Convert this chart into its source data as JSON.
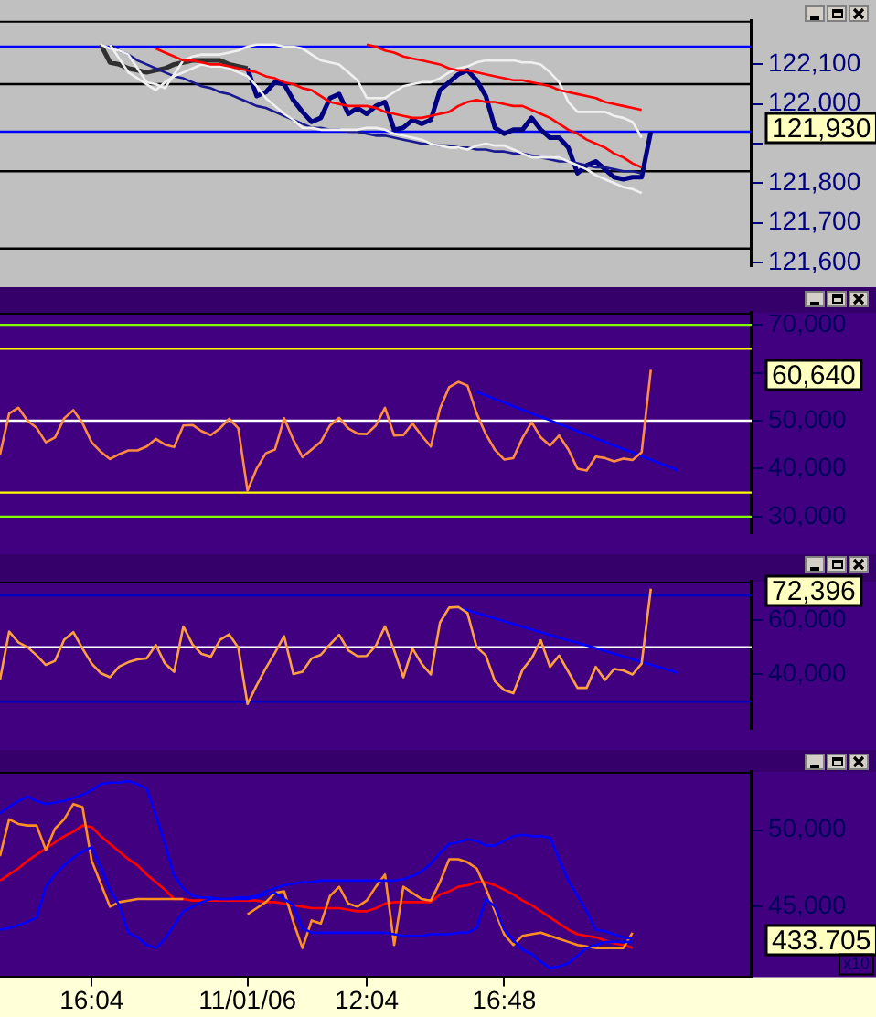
{
  "chart_data": [
    {
      "type": "line",
      "ylim": [
        121590,
        122210
      ],
      "yticks": [
        {
          "value": 121600,
          "label": "121,600"
        },
        {
          "value": 121700,
          "label": "121,700"
        },
        {
          "value": 121800,
          "label": "121,800"
        },
        {
          "value": 121900,
          "label": null
        },
        {
          "value": 122000,
          "label": "122,000"
        },
        {
          "value": 122100,
          "label": "122,100"
        }
      ],
      "tick_labels": "y",
      "marker": "none",
      "series": [
        {
          "color": "#303030",
          "values": [
            null,
            null,
            null,
            null,
            null,
            null,
            null,
            null,
            null,
            null,
            null,
            122150,
            122105,
            122100,
            122090,
            122085,
            122080,
            122085,
            122090,
            122100,
            122105,
            122110,
            122110,
            122110,
            122110,
            122100,
            122095,
            122090,
            null,
            null,
            null,
            null,
            null,
            null,
            null,
            null,
            null,
            null,
            null,
            null,
            null,
            null,
            null,
            null,
            null,
            null,
            null,
            null,
            null,
            null,
            null,
            null,
            null,
            null,
            null,
            null,
            null,
            null,
            null,
            null,
            null,
            null,
            null,
            null,
            null,
            null,
            null,
            null,
            null,
            null,
            null,
            null,
            null,
            null,
            null,
            null,
            null,
            null,
            null,
            null,
            null,
            null,
            null
          ]
        },
        {
          "color": "#000080",
          "values": [
            null,
            null,
            null,
            null,
            null,
            null,
            null,
            null,
            null,
            null,
            null,
            null,
            null,
            null,
            null,
            null,
            null,
            null,
            null,
            null,
            null,
            null,
            null,
            null,
            null,
            null,
            null,
            122090,
            122020,
            122030,
            122055,
            122050,
            122010,
            121980,
            121955,
            121965,
            122015,
            122025,
            121975,
            121990,
            121975,
            121995,
            122005,
            121935,
            121940,
            121960,
            121950,
            121960,
            122035,
            122055,
            122075,
            122085,
            122060,
            122020,
            121940,
            121925,
            121935,
            121935,
            121965,
            121935,
            121915,
            121915,
            121890,
            121825,
            121845,
            121855,
            121835,
            121815,
            121810,
            121815,
            121815,
            121930,
            null,
            null,
            null,
            null,
            null,
            null,
            null,
            null,
            null,
            null,
            null
          ]
        },
        {
          "color": "#ff0000",
          "values": [
            null,
            null,
            null,
            null,
            null,
            null,
            null,
            null,
            null,
            null,
            null,
            null,
            null,
            null,
            null,
            null,
            null,
            122140,
            122130,
            122120,
            122110,
            122110,
            122105,
            122100,
            122100,
            122095,
            122090,
            122085,
            122080,
            122070,
            122065,
            122055,
            122050,
            122040,
            122035,
            122020,
            122005,
            122000,
            121995,
            121995,
            121995,
            121990,
            121980,
            121975,
            121970,
            121965,
            121965,
            121970,
            121975,
            121980,
            121995,
            122005,
            122010,
            122005,
            122005,
            122000,
            121995,
            121995,
            121985,
            121975,
            121965,
            121950,
            121935,
            121925,
            121910,
            121900,
            121890,
            121875,
            121865,
            121850,
            121840,
            null,
            null,
            null,
            null,
            null,
            null,
            null,
            null,
            null,
            null,
            null,
            null
          ]
        },
        {
          "color": "#ff0000",
          "values": [
            null,
            null,
            null,
            null,
            null,
            null,
            null,
            null,
            null,
            null,
            null,
            null,
            null,
            null,
            null,
            null,
            null,
            null,
            null,
            null,
            null,
            null,
            null,
            null,
            null,
            null,
            null,
            null,
            null,
            null,
            null,
            null,
            null,
            null,
            null,
            null,
            null,
            null,
            null,
            null,
            122150,
            122145,
            122135,
            122130,
            122120,
            122115,
            122110,
            122105,
            122100,
            122090,
            122085,
            122085,
            122080,
            122075,
            122070,
            122065,
            122060,
            122060,
            122055,
            122050,
            122045,
            122035,
            122030,
            122025,
            122020,
            122015,
            122005,
            122000,
            121995,
            121990,
            121985,
            null,
            null,
            null,
            null,
            null,
            null,
            null,
            null,
            null,
            null,
            null,
            null
          ]
        },
        {
          "color": "#f0f0f0",
          "values": [
            null,
            null,
            null,
            null,
            null,
            null,
            null,
            null,
            null,
            null,
            null,
            122150,
            122140,
            122135,
            122125,
            122090,
            122055,
            122050,
            122040,
            122075,
            122110,
            122120,
            122125,
            122125,
            122125,
            122130,
            122135,
            122145,
            122150,
            122150,
            122150,
            122145,
            122145,
            122140,
            122125,
            122110,
            122105,
            122100,
            122080,
            122060,
            122015,
            122015,
            122015,
            122030,
            122045,
            122050,
            122055,
            122055,
            122065,
            122080,
            122090,
            122095,
            122105,
            122110,
            122110,
            122110,
            122110,
            122105,
            122105,
            122100,
            122080,
            122055,
            122005,
            121980,
            121980,
            121980,
            121980,
            121970,
            121965,
            121955,
            121915,
            null,
            null,
            null,
            null,
            null,
            null,
            null,
            null,
            null,
            null,
            null,
            null
          ]
        },
        {
          "color": "#f0f0f0",
          "values": [
            null,
            null,
            null,
            null,
            null,
            null,
            null,
            null,
            null,
            null,
            null,
            null,
            122150,
            122115,
            122080,
            122065,
            122050,
            122035,
            122055,
            122070,
            122080,
            122090,
            122100,
            122095,
            122095,
            122090,
            122080,
            122070,
            122045,
            122015,
            121995,
            121975,
            121960,
            121940,
            121940,
            121935,
            121935,
            121935,
            121935,
            121935,
            121940,
            121940,
            121935,
            121925,
            121920,
            121915,
            121910,
            121900,
            121895,
            121890,
            121890,
            121885,
            121895,
            121900,
            121895,
            121895,
            121885,
            121875,
            121865,
            121865,
            121865,
            121865,
            121855,
            121845,
            121835,
            121820,
            121810,
            121800,
            121790,
            121785,
            121775,
            null,
            null,
            null,
            null,
            null,
            null,
            null,
            null,
            null,
            null,
            null,
            null
          ]
        },
        {
          "color": "#1a1a90",
          "values": [
            null,
            null,
            null,
            null,
            null,
            null,
            null,
            null,
            null,
            null,
            null,
            null,
            122150,
            122135,
            122125,
            122110,
            122100,
            122090,
            122080,
            122070,
            122065,
            122055,
            122045,
            122040,
            122030,
            122025,
            122015,
            122005,
            121995,
            121990,
            121980,
            121970,
            121960,
            121950,
            121940,
            121940,
            121935,
            121935,
            121930,
            121930,
            121925,
            121920,
            121920,
            121915,
            121910,
            121905,
            121900,
            121900,
            121895,
            121895,
            121890,
            121890,
            121885,
            121885,
            121880,
            121880,
            121875,
            121875,
            121870,
            121865,
            121860,
            121855,
            121855,
            121850,
            121845,
            121840,
            121840,
            121835,
            121830,
            121830,
            121825,
            null,
            null,
            null,
            null,
            null,
            null,
            null,
            null,
            null,
            null,
            null,
            null
          ]
        }
      ],
      "ref_lines": [
        {
          "axis": "y",
          "value": 122145,
          "color": "#0000ff"
        },
        {
          "axis": "y",
          "value": 121930,
          "color": "#0000ff"
        },
        {
          "axis": "y",
          "value": 122050,
          "color": "#000000"
        },
        {
          "axis": "y",
          "value": 121830,
          "color": "#000000"
        },
        {
          "axis": "y",
          "value": 121635,
          "color": "#000000"
        }
      ],
      "annotations": [
        "121,930"
      ]
    },
    {
      "type": "line",
      "ylim": [
        26500,
        72500
      ],
      "yticks": [
        {
          "value": 30000,
          "label": "30,000"
        },
        {
          "value": 40000,
          "label": "40,000"
        },
        {
          "value": 50000,
          "label": "50,000"
        },
        {
          "value": 60000,
          "label": null
        },
        {
          "value": 70000,
          "label": "70,000"
        }
      ],
      "tick_labels": "y",
      "marker": "none",
      "series": [
        {
          "color": "#ff8c40",
          "values": [
            42900,
            51500,
            52700,
            50000,
            48500,
            45500,
            46500,
            50500,
            52200,
            49500,
            45500,
            43500,
            42000,
            43000,
            43800,
            43800,
            44600,
            46200,
            45000,
            44500,
            49000,
            49100,
            47800,
            47000,
            48400,
            50400,
            48400,
            35400,
            40000,
            43200,
            44000,
            50500,
            46000,
            42400,
            44000,
            45600,
            49000,
            50600,
            48400,
            47300,
            47200,
            49000,
            52700,
            46900,
            47000,
            49400,
            46900,
            44600,
            52500,
            57000,
            58100,
            57300,
            51500,
            47200,
            43900,
            41900,
            42200,
            46400,
            49700,
            46500,
            44800,
            46900,
            44000,
            40000,
            39600,
            42500,
            42200,
            41500,
            42100,
            41800,
            43400,
            60600,
            null,
            null,
            null,
            null,
            null,
            null,
            null,
            null,
            null,
            null,
            null
          ]
        },
        {
          "color": "#0000ff",
          "values": [
            null,
            null,
            null,
            null,
            null,
            null,
            null,
            null,
            null,
            null,
            null,
            null,
            null,
            null,
            null,
            null,
            null,
            null,
            null,
            null,
            null,
            null,
            null,
            null,
            null,
            null,
            null,
            null,
            null,
            null,
            null,
            null,
            null,
            null,
            null,
            null,
            null,
            null,
            null,
            null,
            null,
            null,
            null,
            null,
            null,
            null,
            null,
            null,
            null,
            null,
            null,
            null,
            56000,
            55300,
            54500,
            53800,
            53000,
            52300,
            51500,
            50800,
            50100,
            49300,
            48600,
            47800,
            47100,
            46300,
            45600,
            44800,
            44100,
            43400,
            42600,
            41900,
            41100,
            40400,
            39600,
            null,
            null,
            null,
            null,
            null,
            null,
            null,
            null
          ]
        }
      ],
      "ref_lines": [
        {
          "axis": "y",
          "value": 70000,
          "color": "#80ff00"
        },
        {
          "axis": "y",
          "value": 65000,
          "color": "#ffff00"
        },
        {
          "axis": "y",
          "value": 50000,
          "color": "#ffffff"
        },
        {
          "axis": "y",
          "value": 35000,
          "color": "#ffff00"
        },
        {
          "axis": "y",
          "value": 30000,
          "color": "#80ff00"
        }
      ],
      "annotations": [
        "60,640"
      ]
    },
    {
      "type": "line",
      "ylim": [
        20000,
        74000
      ],
      "yticks": [
        {
          "value": 40000,
          "label": "40,000"
        },
        {
          "value": 60000,
          "label": "60,000"
        }
      ],
      "tick_labels": "y",
      "marker": "none",
      "series": [
        {
          "color": "#ffa040",
          "values": [
            38000,
            55700,
            51800,
            50000,
            47000,
            43500,
            45000,
            52700,
            55500,
            49500,
            44000,
            40500,
            39000,
            42900,
            44500,
            45500,
            45900,
            50800,
            44000,
            41000,
            57600,
            51000,
            47500,
            46500,
            52700,
            54700,
            49800,
            29200,
            36000,
            42300,
            48000,
            54000,
            40200,
            41000,
            45900,
            47200,
            51000,
            54500,
            48800,
            46700,
            46800,
            50500,
            57600,
            48800,
            39000,
            49500,
            43900,
            40000,
            59000,
            64500,
            64700,
            62500,
            50000,
            47000,
            37500,
            34300,
            33100,
            41700,
            45900,
            52500,
            42800,
            46900,
            41000,
            35100,
            35100,
            42800,
            38000,
            42000,
            41500,
            40000,
            44000,
            71400,
            null,
            null,
            null,
            null,
            null,
            null,
            null,
            null,
            null,
            null,
            null
          ]
        },
        {
          "color": "#0000ff",
          "values": [
            null,
            null,
            null,
            null,
            null,
            null,
            null,
            null,
            null,
            null,
            null,
            null,
            null,
            null,
            null,
            null,
            null,
            null,
            null,
            null,
            null,
            null,
            null,
            null,
            null,
            null,
            null,
            null,
            null,
            null,
            null,
            null,
            null,
            null,
            null,
            null,
            null,
            null,
            null,
            null,
            null,
            null,
            null,
            null,
            null,
            null,
            null,
            null,
            null,
            null,
            64500,
            63500,
            62500,
            61500,
            60500,
            59500,
            58500,
            57500,
            56500,
            55500,
            54500,
            53500,
            52500,
            51600,
            50600,
            49600,
            48600,
            47600,
            46600,
            45600,
            44600,
            43600,
            42600,
            41600,
            40600,
            null,
            null,
            null,
            null,
            null,
            null,
            null,
            null
          ]
        }
      ],
      "ref_lines": [
        {
          "axis": "y",
          "value": 69000,
          "color": "#0000c0"
        },
        {
          "axis": "y",
          "value": 50000,
          "color": "#ffffff"
        },
        {
          "axis": "y",
          "value": 30000,
          "color": "#0000c0"
        }
      ],
      "annotations": [
        "72,396"
      ]
    },
    {
      "type": "line",
      "categories": [
        null,
        null,
        null,
        null,
        null,
        null,
        null,
        null,
        null,
        null,
        "16:04",
        null,
        null,
        null,
        null,
        null,
        null,
        null,
        null,
        null,
        null,
        null,
        null,
        null,
        null,
        null,
        null,
        "11/01/06",
        null,
        null,
        null,
        null,
        null,
        null,
        null,
        null,
        null,
        null,
        null,
        null,
        "12:04",
        null,
        null,
        null,
        null,
        null,
        null,
        null,
        null,
        null,
        null,
        null,
        null,
        null,
        null,
        "16:48",
        null,
        null,
        null,
        null,
        null,
        null,
        null,
        null,
        null,
        null,
        null,
        null,
        null,
        null,
        null,
        null,
        null,
        null,
        null,
        null,
        null,
        null,
        null,
        null,
        null,
        null,
        null
      ],
      "ylim": [
        40400,
        53800
      ],
      "yticks": [
        {
          "value": 45000,
          "label": "45,000"
        },
        {
          "value": 50000,
          "label": "50,000"
        }
      ],
      "marker": "none",
      "series": [
        {
          "color": "#0000ff",
          "values": [
            51100,
            51500,
            51900,
            52200,
            51900,
            51700,
            51800,
            51900,
            52100,
            52300,
            52600,
            53000,
            53100,
            53100,
            53200,
            53000,
            52700,
            51000,
            49100,
            47000,
            46200,
            45700,
            45600,
            45600,
            45500,
            45500,
            45600,
            45600,
            45700,
            46000,
            46200,
            46400,
            46500,
            46600,
            46600,
            46700,
            46700,
            46700,
            46700,
            46700,
            46700,
            46700,
            46700,
            46700,
            46800,
            47000,
            47300,
            47800,
            48500,
            49100,
            49200,
            49400,
            49300,
            49000,
            49000,
            49300,
            49600,
            49700,
            49600,
            49600,
            49500,
            48100,
            46700,
            45700,
            44700,
            43500,
            43400,
            43200,
            43000,
            42900,
            null,
            null,
            null,
            null,
            null,
            null,
            null,
            null,
            null,
            null,
            null,
            null,
            null
          ]
        },
        {
          "color": "#0000ff",
          "values": [
            43500,
            43600,
            43800,
            44000,
            44300,
            46300,
            47100,
            47700,
            48200,
            48600,
            48900,
            47600,
            46100,
            45100,
            43300,
            43000,
            42500,
            42300,
            42900,
            43800,
            44700,
            45000,
            45300,
            45500,
            45500,
            45500,
            45500,
            45500,
            45600,
            45800,
            45900,
            45500,
            45100,
            43600,
            43300,
            43300,
            43300,
            43300,
            43300,
            43300,
            43300,
            43300,
            43300,
            43200,
            43100,
            43100,
            43100,
            43200,
            43200,
            43200,
            43300,
            43300,
            43600,
            45500,
            45000,
            43500,
            42800,
            42200,
            41900,
            41400,
            41000,
            41100,
            41300,
            41800,
            42300,
            42500,
            42700,
            42700,
            42700,
            42700,
            null,
            null,
            null,
            null,
            null,
            null,
            null,
            null,
            null,
            null,
            null,
            null,
            null
          ]
        },
        {
          "color": "#ff9020",
          "values": [
            48300,
            50700,
            50400,
            50300,
            50300,
            48700,
            50100,
            50700,
            51700,
            51500,
            48000,
            46500,
            45000,
            45300,
            45400,
            45500,
            45500,
            45500,
            45500,
            45500,
            45500,
            null,
            null,
            null,
            null,
            null,
            null,
            44500,
            44900,
            45300,
            45900,
            46000,
            44000,
            42300,
            44100,
            43900,
            45700,
            46300,
            45200,
            45000,
            45400,
            46300,
            47100,
            42500,
            46300,
            45900,
            45500,
            45400,
            46600,
            48100,
            48100,
            47900,
            47500,
            46200,
            44700,
            43200,
            42500,
            43100,
            43200,
            43300,
            43100,
            42900,
            42700,
            42500,
            42400,
            42300,
            42300,
            42300,
            42300,
            43300,
            null,
            null,
            null,
            null,
            null,
            null,
            null,
            null,
            null,
            null,
            null,
            null,
            null
          ]
        },
        {
          "color": "#ff0000",
          "values": [
            46700,
            47100,
            47500,
            48000,
            48400,
            48800,
            49200,
            49600,
            49900,
            50300,
            50200,
            49600,
            49100,
            48600,
            48100,
            47700,
            47100,
            46600,
            46100,
            45500,
            45500,
            45400,
            45400,
            45400,
            45400,
            45400,
            45400,
            45400,
            45400,
            45300,
            45300,
            45200,
            45100,
            45000,
            44900,
            44900,
            44900,
            44900,
            44800,
            44700,
            44700,
            44900,
            45200,
            45300,
            45300,
            45300,
            45300,
            45300,
            45800,
            46000,
            46300,
            46400,
            46600,
            46600,
            46400,
            46100,
            45800,
            45400,
            45100,
            44700,
            44300,
            43900,
            43500,
            43200,
            43100,
            43000,
            42800,
            42600,
            42500,
            42300,
            null,
            null,
            null,
            null,
            null,
            null,
            null,
            null,
            null,
            null,
            null,
            null,
            null
          ]
        }
      ],
      "annotations": [
        "433.705",
        "x10"
      ]
    }
  ]
}
